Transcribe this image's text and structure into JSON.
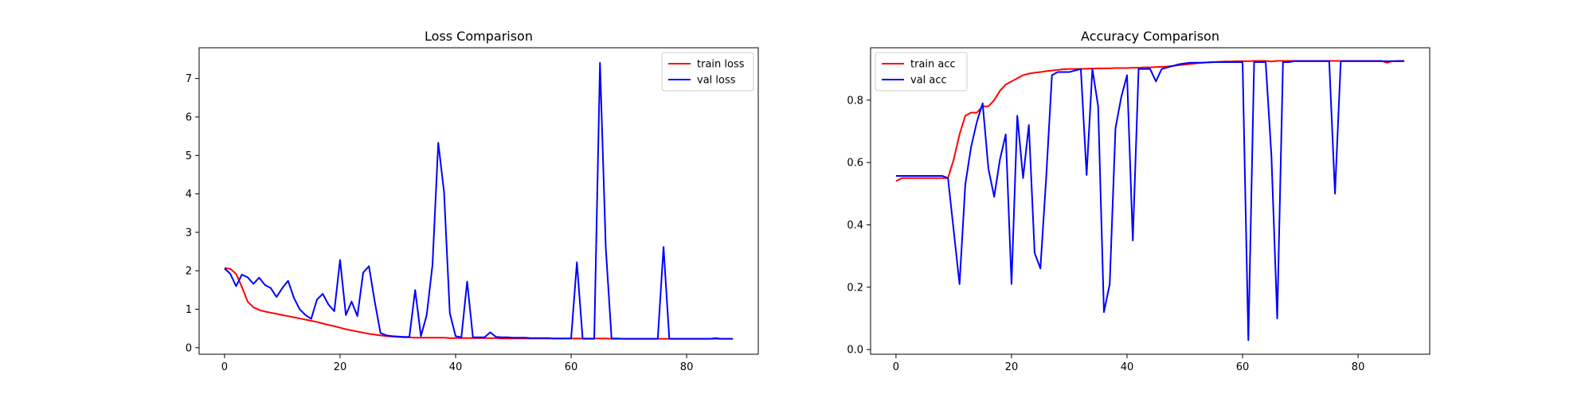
{
  "chart_data": [
    {
      "type": "line",
      "title": "Loss Comparison",
      "xlabel": "",
      "ylabel": "",
      "xlim": [
        -4.4,
        92.4
      ],
      "ylim": [
        -0.17,
        7.8
      ],
      "xticks": [
        0,
        20,
        40,
        60,
        80
      ],
      "yticks": [
        0,
        1,
        2,
        3,
        4,
        5,
        6,
        7
      ],
      "grid": false,
      "legend": "upper right",
      "series": [
        {
          "name": "train loss",
          "color": "#ff0000",
          "x": [
            0,
            1,
            2,
            3,
            4,
            5,
            6,
            7,
            8,
            9,
            10,
            11,
            12,
            13,
            14,
            15,
            16,
            17,
            18,
            19,
            20,
            21,
            22,
            23,
            24,
            25,
            26,
            27,
            28,
            29,
            30,
            31,
            32,
            33,
            34,
            35,
            36,
            37,
            38,
            39,
            40,
            41,
            42,
            43,
            44,
            45,
            46,
            47,
            48,
            49,
            50,
            51,
            52,
            53,
            54,
            55,
            56,
            57,
            58,
            59,
            60,
            61,
            62,
            63,
            64,
            65,
            66,
            67,
            68,
            69,
            70,
            71,
            72,
            73,
            74,
            75,
            76,
            77,
            78,
            79,
            80,
            81,
            82,
            83,
            84,
            85,
            86,
            87,
            88
          ],
          "values": [
            2.07,
            2.05,
            1.92,
            1.58,
            1.2,
            1.05,
            0.98,
            0.94,
            0.91,
            0.88,
            0.85,
            0.82,
            0.79,
            0.76,
            0.73,
            0.7,
            0.67,
            0.63,
            0.59,
            0.56,
            0.52,
            0.48,
            0.45,
            0.42,
            0.39,
            0.36,
            0.34,
            0.32,
            0.3,
            0.29,
            0.28,
            0.27,
            0.27,
            0.26,
            0.26,
            0.26,
            0.26,
            0.26,
            0.26,
            0.25,
            0.25,
            0.25,
            0.25,
            0.25,
            0.25,
            0.25,
            0.25,
            0.25,
            0.24,
            0.24,
            0.24,
            0.24,
            0.24,
            0.24,
            0.24,
            0.24,
            0.24,
            0.24,
            0.24,
            0.24,
            0.24,
            0.24,
            0.24,
            0.24,
            0.24,
            0.24,
            0.24,
            0.23,
            0.23,
            0.23,
            0.23,
            0.23,
            0.23,
            0.23,
            0.23,
            0.23,
            0.23,
            0.23,
            0.23,
            0.23,
            0.23,
            0.23,
            0.23,
            0.23,
            0.23,
            0.23,
            0.23,
            0.23,
            0.23
          ]
        },
        {
          "name": "val loss",
          "color": "#0000ff",
          "x": [
            0,
            1,
            2,
            3,
            4,
            5,
            6,
            7,
            8,
            9,
            10,
            11,
            12,
            13,
            14,
            15,
            16,
            17,
            18,
            19,
            20,
            21,
            22,
            23,
            24,
            25,
            26,
            27,
            28,
            29,
            30,
            31,
            32,
            33,
            34,
            35,
            36,
            37,
            38,
            39,
            40,
            41,
            42,
            43,
            44,
            45,
            46,
            47,
            48,
            49,
            50,
            51,
            52,
            53,
            54,
            55,
            56,
            57,
            58,
            59,
            60,
            61,
            62,
            63,
            64,
            65,
            66,
            67,
            68,
            69,
            70,
            71,
            72,
            73,
            74,
            75,
            76,
            77,
            78,
            79,
            80,
            81,
            82,
            83,
            84,
            85,
            86,
            87,
            88
          ],
          "values": [
            2.06,
            1.92,
            1.6,
            1.9,
            1.83,
            1.66,
            1.82,
            1.63,
            1.55,
            1.32,
            1.55,
            1.74,
            1.3,
            1.0,
            0.85,
            0.75,
            1.25,
            1.4,
            1.12,
            0.95,
            2.28,
            0.85,
            1.2,
            0.82,
            1.95,
            2.12,
            1.2,
            0.38,
            0.32,
            0.3,
            0.29,
            0.28,
            0.28,
            1.5,
            0.3,
            0.85,
            2.15,
            5.33,
            4.05,
            0.9,
            0.3,
            0.27,
            1.72,
            0.27,
            0.27,
            0.27,
            0.4,
            0.28,
            0.27,
            0.27,
            0.26,
            0.26,
            0.26,
            0.25,
            0.25,
            0.25,
            0.25,
            0.24,
            0.24,
            0.24,
            0.24,
            2.22,
            0.23,
            0.23,
            0.23,
            7.41,
            2.6,
            0.24,
            0.24,
            0.23,
            0.23,
            0.23,
            0.23,
            0.23,
            0.23,
            0.23,
            2.62,
            0.23,
            0.23,
            0.23,
            0.23,
            0.23,
            0.23,
            0.23,
            0.23,
            0.25,
            0.23,
            0.23,
            0.23
          ]
        }
      ]
    },
    {
      "type": "line",
      "title": "Accuracy Comparison",
      "xlabel": "",
      "ylabel": "",
      "xlim": [
        -4.4,
        92.4
      ],
      "ylim": [
        -0.015,
        0.968
      ],
      "xticks": [
        0,
        20,
        40,
        60,
        80
      ],
      "yticks": [
        "0.0",
        "0.2",
        "0.4",
        "0.6",
        "0.8"
      ],
      "ytick_values": [
        0,
        0.2,
        0.4,
        0.6,
        0.8
      ],
      "grid": false,
      "legend": "upper left",
      "series": [
        {
          "name": "train acc",
          "color": "#ff0000",
          "x": [
            0,
            1,
            2,
            3,
            4,
            5,
            6,
            7,
            8,
            9,
            10,
            11,
            12,
            13,
            14,
            15,
            16,
            17,
            18,
            19,
            20,
            21,
            22,
            23,
            24,
            25,
            26,
            27,
            28,
            29,
            30,
            31,
            32,
            33,
            34,
            35,
            36,
            37,
            38,
            39,
            40,
            41,
            42,
            43,
            44,
            45,
            46,
            47,
            48,
            49,
            50,
            51,
            52,
            53,
            54,
            55,
            56,
            57,
            58,
            59,
            60,
            61,
            62,
            63,
            64,
            65,
            66,
            67,
            68,
            69,
            70,
            71,
            72,
            73,
            74,
            75,
            76,
            77,
            78,
            79,
            80,
            81,
            82,
            83,
            84,
            85,
            86,
            87,
            88
          ],
          "values": [
            0.54,
            0.55,
            0.55,
            0.55,
            0.55,
            0.55,
            0.55,
            0.55,
            0.55,
            0.55,
            0.61,
            0.69,
            0.75,
            0.76,
            0.76,
            0.78,
            0.78,
            0.8,
            0.83,
            0.85,
            0.86,
            0.87,
            0.88,
            0.885,
            0.888,
            0.89,
            0.893,
            0.895,
            0.897,
            0.899,
            0.9,
            0.9,
            0.9,
            0.901,
            0.901,
            0.902,
            0.902,
            0.902,
            0.903,
            0.903,
            0.903,
            0.904,
            0.904,
            0.905,
            0.905,
            0.906,
            0.907,
            0.908,
            0.91,
            0.912,
            0.914,
            0.916,
            0.918,
            0.92,
            0.921,
            0.922,
            0.923,
            0.924,
            0.924,
            0.925,
            0.925,
            0.925,
            0.926,
            0.926,
            0.926,
            0.924,
            0.926,
            0.926,
            0.926,
            0.926,
            0.926,
            0.926,
            0.926,
            0.926,
            0.926,
            0.926,
            0.926,
            0.926,
            0.926,
            0.926,
            0.926,
            0.926,
            0.926,
            0.926,
            0.926,
            0.92,
            0.925,
            0.926,
            0.926
          ]
        },
        {
          "name": "val acc",
          "color": "#0000ff",
          "x": [
            0,
            1,
            2,
            3,
            4,
            5,
            6,
            7,
            8,
            9,
            10,
            11,
            12,
            13,
            14,
            15,
            16,
            17,
            18,
            19,
            20,
            21,
            22,
            23,
            24,
            25,
            26,
            27,
            28,
            29,
            30,
            31,
            32,
            33,
            34,
            35,
            36,
            37,
            38,
            39,
            40,
            41,
            42,
            43,
            44,
            45,
            46,
            47,
            48,
            49,
            50,
            51,
            52,
            53,
            54,
            55,
            56,
            57,
            58,
            59,
            60,
            61,
            62,
            63,
            64,
            65,
            66,
            67,
            68,
            69,
            70,
            71,
            72,
            73,
            74,
            75,
            76,
            77,
            78,
            79,
            80,
            81,
            82,
            83,
            84,
            85,
            86,
            87,
            88
          ],
          "values": [
            0.557,
            0.557,
            0.557,
            0.557,
            0.557,
            0.557,
            0.557,
            0.557,
            0.557,
            0.55,
            0.38,
            0.21,
            0.53,
            0.65,
            0.73,
            0.79,
            0.58,
            0.49,
            0.61,
            0.69,
            0.21,
            0.75,
            0.55,
            0.72,
            0.31,
            0.26,
            0.55,
            0.88,
            0.89,
            0.89,
            0.89,
            0.895,
            0.9,
            0.56,
            0.9,
            0.78,
            0.12,
            0.21,
            0.71,
            0.81,
            0.88,
            0.35,
            0.9,
            0.9,
            0.9,
            0.86,
            0.9,
            0.905,
            0.91,
            0.915,
            0.918,
            0.92,
            0.92,
            0.92,
            0.921,
            0.922,
            0.922,
            0.922,
            0.922,
            0.922,
            0.922,
            0.03,
            0.922,
            0.922,
            0.922,
            0.62,
            0.1,
            0.922,
            0.922,
            0.925,
            0.925,
            0.925,
            0.925,
            0.925,
            0.925,
            0.925,
            0.5,
            0.925,
            0.925,
            0.925,
            0.925,
            0.925,
            0.925,
            0.925,
            0.925,
            0.925,
            0.925,
            0.925,
            0.925
          ]
        }
      ]
    }
  ]
}
